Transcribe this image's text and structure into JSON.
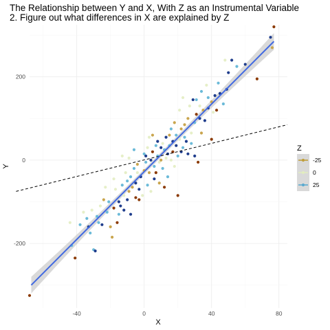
{
  "chart_data": {
    "type": "scatter",
    "title_line1": "The Relationship between Y and X, With Z as an Instrumental Variable",
    "title_line2": "2. Figure out what differences in X are explained by Z",
    "xlabel": "X",
    "ylabel": "Y",
    "xlim": [
      -68,
      85
    ],
    "ylim": [
      -355,
      325
    ],
    "xticks": [
      -40,
      0,
      40,
      80
    ],
    "yticks": [
      -200,
      0,
      200
    ],
    "grid": true,
    "legend": {
      "title": "Z",
      "entries": [
        {
          "label": "-25",
          "color": "#bf9d3a"
        },
        {
          "label": "0",
          "color": "#e2ecc0"
        },
        {
          "label": "25",
          "color": "#5aa9cf"
        }
      ],
      "placement": "right"
    },
    "colors": {
      "low": "#8b3a05",
      "mid_low": "#c9a54e",
      "mid": "#e6efc8",
      "mid_high": "#6bbad8",
      "high": "#1f3d8c",
      "fit_line": "#4169e1",
      "ribbon": "#cccccc",
      "dashed_line": "#000000"
    },
    "fit_line": {
      "x": [
        -67,
        77
      ],
      "y": [
        -300,
        285
      ]
    },
    "dashed_line": {
      "x": [
        -76,
        85
      ],
      "y": [
        -75,
        85
      ]
    },
    "points": [
      {
        "x": -68,
        "y": -325,
        "z": -30
      },
      {
        "x": -44,
        "y": -150,
        "z": 5
      },
      {
        "x": -43,
        "y": -205,
        "z": 20
      },
      {
        "x": -41,
        "y": -235,
        "z": -30
      },
      {
        "x": -38,
        "y": -155,
        "z": 10
      },
      {
        "x": -36,
        "y": -125,
        "z": 0
      },
      {
        "x": -34,
        "y": -140,
        "z": 15
      },
      {
        "x": -33,
        "y": -160,
        "z": 25
      },
      {
        "x": -32,
        "y": -175,
        "z": 20
      },
      {
        "x": -31,
        "y": -120,
        "z": 5
      },
      {
        "x": -30,
        "y": -215,
        "z": 15
      },
      {
        "x": -29,
        "y": -218,
        "z": 30
      },
      {
        "x": -28,
        "y": -135,
        "z": 10
      },
      {
        "x": -27,
        "y": -150,
        "z": 20
      },
      {
        "x": -26,
        "y": -110,
        "z": 0
      },
      {
        "x": -25,
        "y": -155,
        "z": 25
      },
      {
        "x": -24,
        "y": -95,
        "z": -10
      },
      {
        "x": -23,
        "y": -65,
        "z": 5
      },
      {
        "x": -22,
        "y": -125,
        "z": 10
      },
      {
        "x": -21,
        "y": -100,
        "z": 15
      },
      {
        "x": -20,
        "y": -160,
        "z": -20
      },
      {
        "x": -19,
        "y": -185,
        "z": -15
      },
      {
        "x": -18,
        "y": -115,
        "z": -25
      },
      {
        "x": -18,
        "y": -45,
        "z": 0
      },
      {
        "x": -17,
        "y": -70,
        "z": 5
      },
      {
        "x": -16,
        "y": -150,
        "z": -30
      },
      {
        "x": -15,
        "y": -130,
        "z": 20
      },
      {
        "x": -15,
        "y": -100,
        "z": 30
      },
      {
        "x": -14,
        "y": -110,
        "z": 25
      },
      {
        "x": -13,
        "y": -60,
        "z": 10
      },
      {
        "x": -13,
        "y": 10,
        "z": 0
      },
      {
        "x": -12,
        "y": -85,
        "z": -5
      },
      {
        "x": -12,
        "y": -120,
        "z": 35
      },
      {
        "x": -11,
        "y": -30,
        "z": 5
      },
      {
        "x": -10,
        "y": -50,
        "z": 20
      },
      {
        "x": -10,
        "y": -95,
        "z": 30
      },
      {
        "x": -9,
        "y": -75,
        "z": -10
      },
      {
        "x": -9,
        "y": 5,
        "z": 0
      },
      {
        "x": -8,
        "y": -40,
        "z": 15
      },
      {
        "x": -8,
        "y": -130,
        "z": 25
      },
      {
        "x": -7,
        "y": -65,
        "z": -20
      },
      {
        "x": -6,
        "y": -20,
        "z": 10
      },
      {
        "x": -6,
        "y": 25,
        "z": 20
      },
      {
        "x": -5,
        "y": -90,
        "z": -30
      },
      {
        "x": -5,
        "y": -55,
        "z": 30
      },
      {
        "x": -4,
        "y": -10,
        "z": -15
      },
      {
        "x": -4,
        "y": -30,
        "z": 5
      },
      {
        "x": -3,
        "y": -70,
        "z": 35
      },
      {
        "x": -3,
        "y": -95,
        "z": -25
      },
      {
        "x": -2,
        "y": -40,
        "z": 25
      },
      {
        "x": -1,
        "y": -85,
        "z": 0
      },
      {
        "x": 0,
        "y": 15,
        "z": 15
      },
      {
        "x": 0,
        "y": -25,
        "z": -10
      },
      {
        "x": 1,
        "y": -5,
        "z": 20
      },
      {
        "x": 1,
        "y": 10,
        "z": 30
      },
      {
        "x": 2,
        "y": -60,
        "z": 10
      },
      {
        "x": 2,
        "y": 30,
        "z": -5
      },
      {
        "x": 3,
        "y": -30,
        "z": -20
      },
      {
        "x": 3,
        "y": 55,
        "z": 5
      },
      {
        "x": 4,
        "y": 0,
        "z": 25
      },
      {
        "x": 4,
        "y": -75,
        "z": 0
      },
      {
        "x": 5,
        "y": 20,
        "z": -25
      },
      {
        "x": 5,
        "y": 60,
        "z": -15
      },
      {
        "x": 6,
        "y": -45,
        "z": 35
      },
      {
        "x": 6,
        "y": -15,
        "z": 20
      },
      {
        "x": 7,
        "y": 35,
        "z": 10
      },
      {
        "x": 7,
        "y": -30,
        "z": -30
      },
      {
        "x": 8,
        "y": 10,
        "z": 15
      },
      {
        "x": 8,
        "y": 45,
        "z": 25
      },
      {
        "x": 9,
        "y": -55,
        "z": -10
      },
      {
        "x": 9,
        "y": -5,
        "z": 5
      },
      {
        "x": 10,
        "y": 30,
        "z": 30
      },
      {
        "x": 10,
        "y": 0,
        "z": -20
      },
      {
        "x": 11,
        "y": 40,
        "z": 0
      },
      {
        "x": 11,
        "y": -20,
        "z": 20
      },
      {
        "x": 12,
        "y": -65,
        "z": -30
      },
      {
        "x": 12,
        "y": 25,
        "z": 10
      },
      {
        "x": 13,
        "y": 55,
        "z": 35
      },
      {
        "x": 13,
        "y": 5,
        "z": -5
      },
      {
        "x": 14,
        "y": 15,
        "z": 25
      },
      {
        "x": 14,
        "y": -40,
        "z": 15
      },
      {
        "x": 15,
        "y": 60,
        "z": -15
      },
      {
        "x": 15,
        "y": 35,
        "z": 20
      },
      {
        "x": 16,
        "y": 0,
        "z": 0
      },
      {
        "x": 16,
        "y": 75,
        "z": 10
      },
      {
        "x": 17,
        "y": 20,
        "z": -25
      },
      {
        "x": 17,
        "y": 45,
        "z": 30
      },
      {
        "x": 18,
        "y": -15,
        "z": 5
      },
      {
        "x": 18,
        "y": 90,
        "z": -10
      },
      {
        "x": 19,
        "y": 60,
        "z": 20
      },
      {
        "x": 19,
        "y": 35,
        "z": 35
      },
      {
        "x": 20,
        "y": -85,
        "z": -25
      },
      {
        "x": 20,
        "y": 10,
        "z": 15
      },
      {
        "x": 21,
        "y": 50,
        "z": -5
      },
      {
        "x": 21,
        "y": 120,
        "z": 0
      },
      {
        "x": 22,
        "y": 75,
        "z": -15
      },
      {
        "x": 22,
        "y": 20,
        "z": 25
      },
      {
        "x": 23,
        "y": 30,
        "z": 10
      },
      {
        "x": 23,
        "y": 150,
        "z": 5
      },
      {
        "x": 24,
        "y": 55,
        "z": 20
      },
      {
        "x": 24,
        "y": 85,
        "z": -20
      },
      {
        "x": 25,
        "y": 45,
        "z": 30
      },
      {
        "x": 26,
        "y": 100,
        "z": -10
      },
      {
        "x": 26,
        "y": 15,
        "z": 35
      },
      {
        "x": 27,
        "y": 130,
        "z": 0
      },
      {
        "x": 28,
        "y": 40,
        "z": 10
      },
      {
        "x": 28,
        "y": 65,
        "z": -5
      },
      {
        "x": 29,
        "y": 145,
        "z": 25
      },
      {
        "x": 30,
        "y": 90,
        "z": 15
      },
      {
        "x": 30,
        "y": 10,
        "z": 30
      },
      {
        "x": 31,
        "y": 145,
        "z": 20
      },
      {
        "x": 31,
        "y": 110,
        "z": -25
      },
      {
        "x": 32,
        "y": -5,
        "z": -30
      },
      {
        "x": 33,
        "y": 130,
        "z": 5
      },
      {
        "x": 33,
        "y": 100,
        "z": 35
      },
      {
        "x": 34,
        "y": 65,
        "z": -20
      },
      {
        "x": 34,
        "y": 165,
        "z": 15
      },
      {
        "x": 35,
        "y": 120,
        "z": -15
      },
      {
        "x": 36,
        "y": 95,
        "z": 25
      },
      {
        "x": 37,
        "y": 180,
        "z": 0
      },
      {
        "x": 38,
        "y": 150,
        "z": 10
      },
      {
        "x": 38,
        "y": 125,
        "z": 30
      },
      {
        "x": 40,
        "y": 140,
        "z": -10
      },
      {
        "x": 40,
        "y": 50,
        "z": -30
      },
      {
        "x": 41,
        "y": 115,
        "z": 5
      },
      {
        "x": 42,
        "y": 155,
        "z": 35
      },
      {
        "x": 43,
        "y": 120,
        "z": -25
      },
      {
        "x": 44,
        "y": 185,
        "z": 15
      },
      {
        "x": 45,
        "y": 160,
        "z": 30
      },
      {
        "x": 47,
        "y": 135,
        "z": 20
      },
      {
        "x": 48,
        "y": 240,
        "z": -5
      },
      {
        "x": 49,
        "y": 170,
        "z": 35
      },
      {
        "x": 50,
        "y": 210,
        "z": 25
      },
      {
        "x": 52,
        "y": 240,
        "z": 30
      },
      {
        "x": 55,
        "y": 225,
        "z": 10
      },
      {
        "x": 60,
        "y": 230,
        "z": 25
      },
      {
        "x": 67,
        "y": 195,
        "z": -30
      },
      {
        "x": 75,
        "y": 295,
        "z": 30
      },
      {
        "x": 76,
        "y": 270,
        "z": -20
      },
      {
        "x": 77,
        "y": 320,
        "z": -25
      }
    ]
  }
}
